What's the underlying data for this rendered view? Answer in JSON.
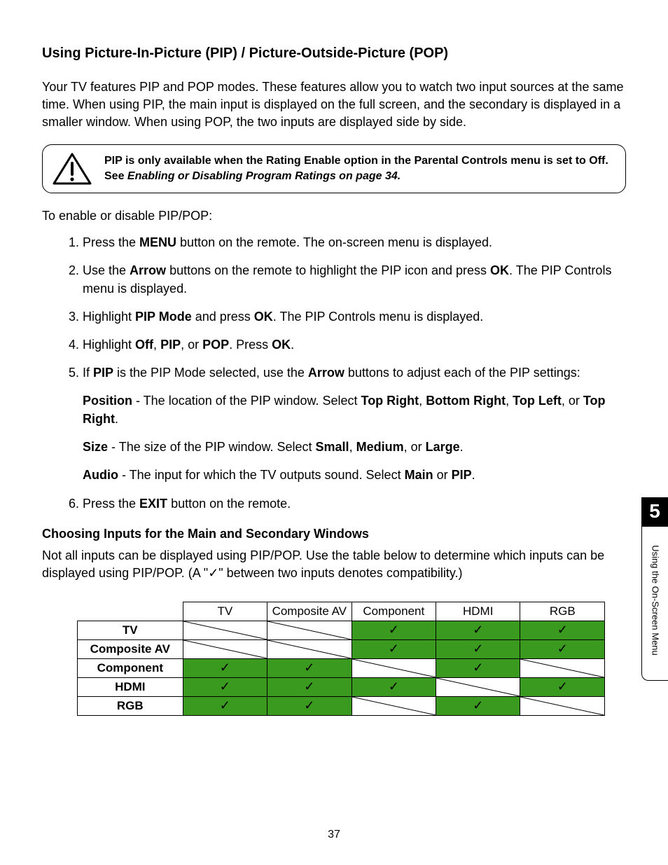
{
  "title": "Using Picture-In-Picture (PIP) / Picture-Outside-Picture (POP)",
  "intro": "Your TV features PIP and POP modes. These features allow you to watch two input sources at the same time. When using PIP, the main input is displayed on the full screen, and the secondary is displayed in a smaller window. When using POP, the two inputs are displayed side by side.",
  "callout": {
    "line1": "PIP is only available when the Rating Enable option in the Parental Controls menu is set to Off. See ",
    "line2_italic": "Enabling or Disabling Program Ratings on page 34."
  },
  "lead": "To enable or disable PIP/POP:",
  "steps": {
    "s1_a": "Press the ",
    "s1_b": "MENU",
    "s1_c": " button on the remote. The on-screen menu is displayed.",
    "s2_a": "Use the ",
    "s2_b": "Arrow",
    "s2_c": " buttons on the remote to highlight the PIP icon and press ",
    "s2_d": "OK",
    "s2_e": ". The PIP Controls menu is displayed.",
    "s3_a": "Highlight ",
    "s3_b": "PIP Mode",
    "s3_c": " and press ",
    "s3_d": "OK",
    "s3_e": ". The PIP Controls menu is displayed.",
    "s4_a": "Highlight ",
    "s4_b": "Off",
    "s4_c": ", ",
    "s4_d": "PIP",
    "s4_e": ", or ",
    "s4_f": "POP",
    "s4_g": ". Press ",
    "s4_h": "OK",
    "s4_i": ".",
    "s5_a": "If ",
    "s5_b": "PIP",
    "s5_c": " is the PIP Mode selected, use the ",
    "s5_d": "Arrow",
    "s5_e": " buttons to adjust each of the PIP settings:",
    "pos_a": "Position",
    "pos_b": " - The location of the PIP window. Select ",
    "pos_c": "Top Right",
    "pos_d": ", ",
    "pos_e": "Bottom Right",
    "pos_f": ", ",
    "pos_g": "Top Left",
    "pos_h": ", or ",
    "pos_i": "Top Right",
    "pos_j": ".",
    "size_a": "Size",
    "size_b": " - The size of the PIP window. Select ",
    "size_c": "Small",
    "size_d": ", ",
    "size_e": "Medium",
    "size_f": ", or ",
    "size_g": "Large",
    "size_h": ".",
    "aud_a": "Audio",
    "aud_b": " - The input for which the TV outputs sound. Select ",
    "aud_c": "Main",
    "aud_d": " or ",
    "aud_e": "PIP",
    "aud_f": ".",
    "s6_a": "Press the ",
    "s6_b": "EXIT",
    "s6_c": " button on the remote."
  },
  "subhead": "Choosing Inputs for the Main and Secondary Windows",
  "tablelead": "Not all inputs can be displayed using PIP/POP. Use the table below to determine which inputs can be displayed using PIP/POP. (A \"✓\" between two inputs denotes compatibility.)",
  "sidetab": {
    "chapter": "5",
    "label": "Using the On-Screen Menu"
  },
  "table": {
    "columns": [
      "TV",
      "Composite AV",
      "Component",
      "HDMI",
      "RGB"
    ],
    "rows": [
      "TV",
      "Composite AV",
      "Component",
      "HDMI",
      "RGB"
    ],
    "cells": [
      [
        "na",
        "na",
        "ok",
        "ok",
        "ok"
      ],
      [
        "na",
        "na",
        "ok",
        "ok",
        "ok"
      ],
      [
        "ok",
        "ok",
        "na",
        "ok",
        "na"
      ],
      [
        "ok",
        "ok",
        "ok",
        "na",
        "ok"
      ],
      [
        "ok",
        "ok",
        "na",
        "ok",
        "na"
      ]
    ],
    "ok_color": "#3a9a1f",
    "check_glyph": "✓"
  },
  "pagenum": "37"
}
